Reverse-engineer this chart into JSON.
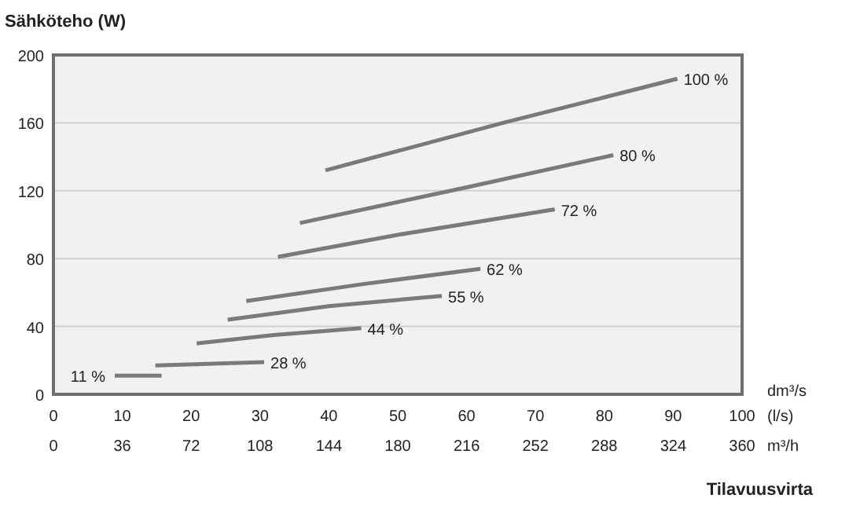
{
  "chart_data": {
    "type": "line",
    "ylabel": "Sähköteho (W)",
    "xlabel": "Tilavuusvirta",
    "x2label": "m³/h",
    "annotations": [
      "dm³/s",
      "(l/s)"
    ],
    "xlim": [
      0,
      100
    ],
    "xticks": [
      0,
      10,
      20,
      30,
      40,
      50,
      60,
      70,
      80,
      90,
      100
    ],
    "x2lim": [
      0,
      360
    ],
    "x2ticks": [
      0,
      36,
      72,
      108,
      144,
      180,
      216,
      252,
      288,
      324,
      360
    ],
    "ylim": [
      0,
      200
    ],
    "yticks": [
      0,
      40,
      80,
      120,
      160,
      200
    ],
    "grid": "y",
    "marker": "none",
    "line_style": "solid",
    "series": [
      {
        "name": "11 %",
        "color": "#7a7a7c",
        "x": [
          8.9,
          15.7
        ],
        "values": [
          11,
          11
        ]
      },
      {
        "name": "28 %",
        "color": "#7a7a7c",
        "x": [
          14.8,
          30.6
        ],
        "values": [
          17,
          19
        ]
      },
      {
        "name": "44 %",
        "color": "#7a7a7c",
        "x": [
          20.8,
          32,
          44.7
        ],
        "values": [
          30,
          35,
          39
        ]
      },
      {
        "name": "55 %",
        "color": "#7a7a7c",
        "x": [
          25.3,
          40,
          56.4
        ],
        "values": [
          44,
          52,
          58
        ]
      },
      {
        "name": "62 %",
        "color": "#7a7a7c",
        "x": [
          28,
          45,
          62
        ],
        "values": [
          55,
          65,
          74
        ]
      },
      {
        "name": "72 %",
        "color": "#7a7a7c",
        "x": [
          32.6,
          50,
          72.8
        ],
        "values": [
          81,
          94,
          109
        ]
      },
      {
        "name": "80 %",
        "color": "#7a7a7c",
        "x": [
          35.8,
          60,
          81.3
        ],
        "values": [
          101,
          122,
          141
        ]
      },
      {
        "name": "100 %",
        "color": "#7a7a7c",
        "x": [
          39.5,
          65.3,
          79,
          90.6
        ],
        "values": [
          132,
          160,
          174,
          186
        ]
      }
    ]
  }
}
